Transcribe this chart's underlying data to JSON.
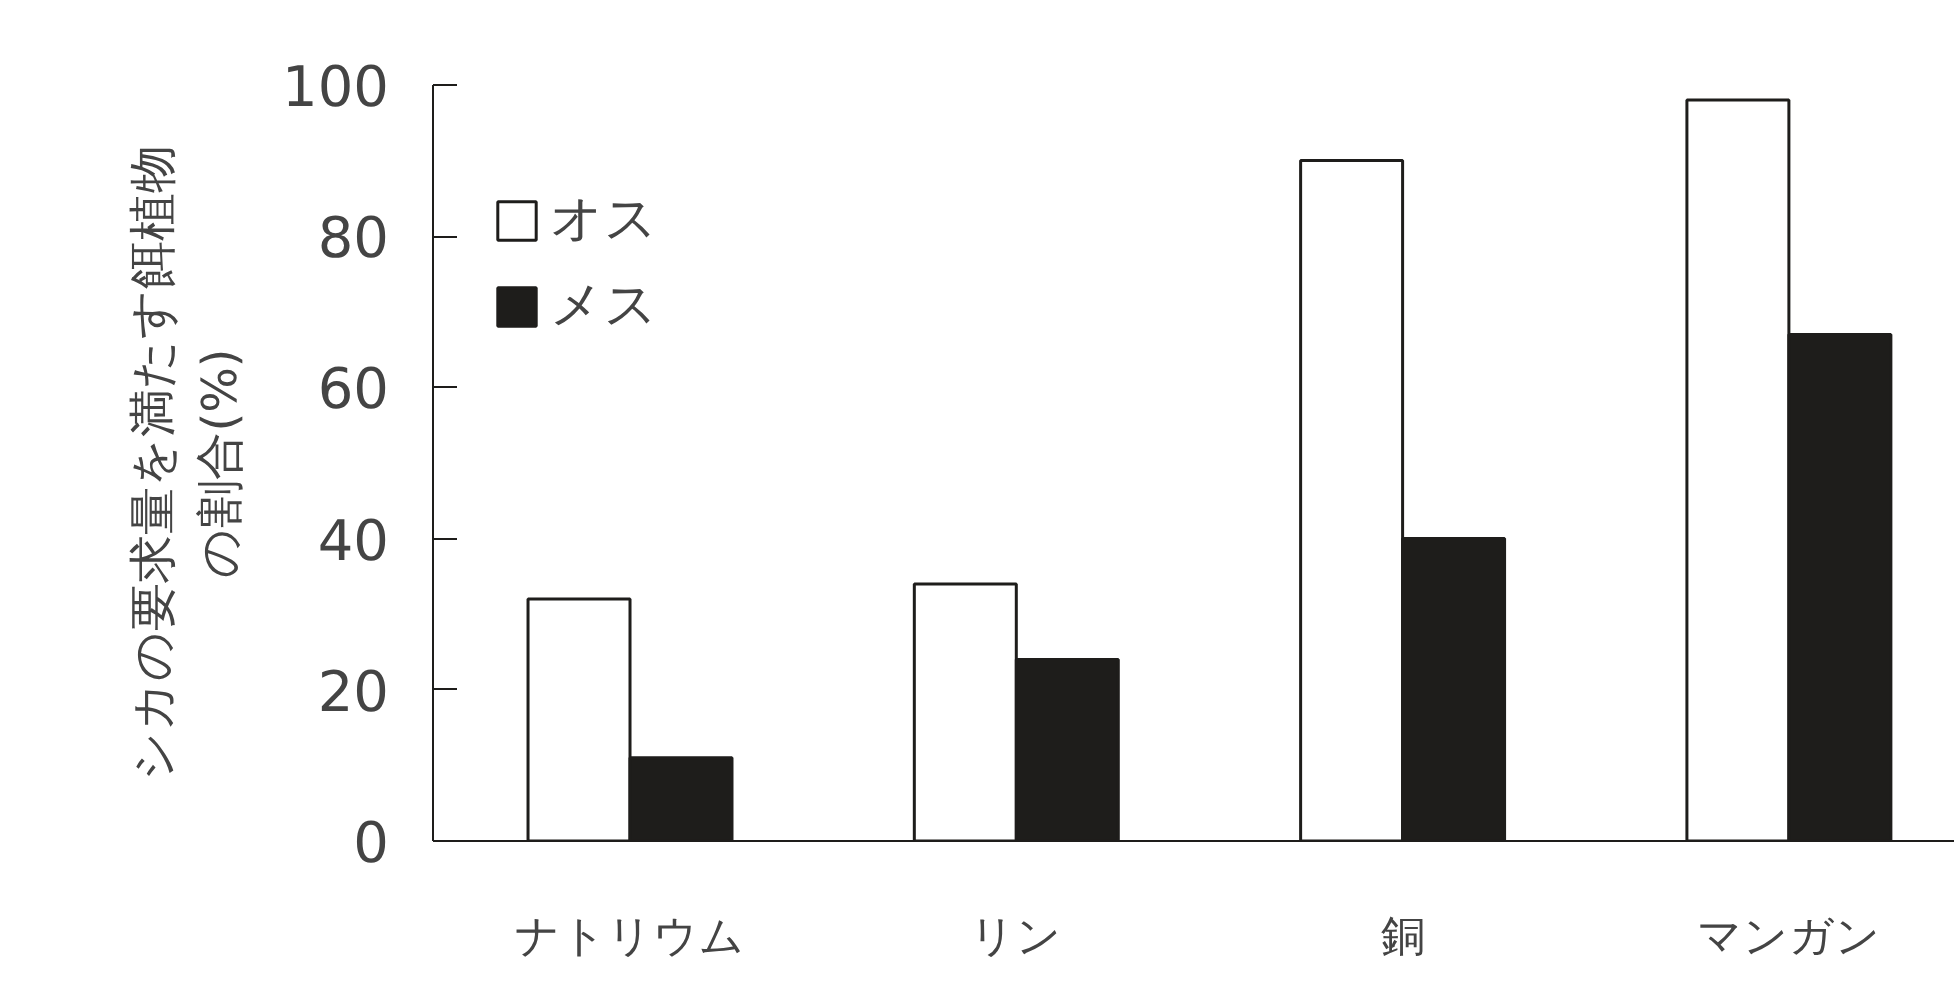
{
  "chart_data": {
    "type": "bar",
    "ylabel": "シカの要求量を満たす餌植物の割合(%)",
    "categories": [
      "ナトリウム",
      "リン",
      "銅",
      "マンガン"
    ],
    "series": [
      {
        "name": "オス",
        "color": "#ffffff",
        "values": [
          32,
          34,
          90,
          98
        ]
      },
      {
        "name": "メス",
        "color": "#1e1d1b",
        "values": [
          11,
          24,
          40,
          67
        ]
      }
    ],
    "ylim": [
      0,
      100
    ],
    "yticks": [
      0,
      20,
      40,
      60,
      80,
      100
    ],
    "grid": false,
    "legend": "top left"
  }
}
